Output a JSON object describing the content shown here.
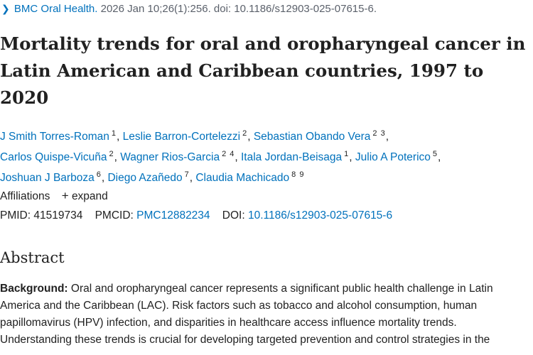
{
  "citation": {
    "journal": "BMC Oral Health.",
    "details": "2026 Jan 10;26(1):256. doi: 10.1186/s12903-025-07615-6."
  },
  "title_lines": [
    "Mortality trends for oral and oropharyngeal cancer in",
    "Latin American and Caribbean countries, 1997 to",
    "2020"
  ],
  "authors": [
    {
      "name": "J Smith Torres-Roman",
      "aff": "1"
    },
    {
      "name": "Leslie Barron-Cortelezzi",
      "aff": "2"
    },
    {
      "name": "Sebastian Obando Vera",
      "aff": "2 3"
    },
    {
      "name": "Carlos Quispe-Vicuña",
      "aff": "2"
    },
    {
      "name": "Wagner Rios-Garcia",
      "aff": "2 4"
    },
    {
      "name": "Itala Jordan-Beisaga",
      "aff": "1"
    },
    {
      "name": "Julio A Poterico",
      "aff": "5"
    },
    {
      "name": "Joshuan J Barboza",
      "aff": "6"
    },
    {
      "name": "Diego Azañedo",
      "aff": "7"
    },
    {
      "name": "Claudia Machicado",
      "aff": "8 9"
    }
  ],
  "affiliations": {
    "label": "Affiliations",
    "expand_label": "expand",
    "expand_icon": "plus-icon"
  },
  "ids": {
    "pmid_label": "PMID:",
    "pmid": "41519734",
    "pmcid_label": "PMCID:",
    "pmcid": "PMC12882234",
    "doi_label": "DOI:",
    "doi": "10.1186/s12903-025-07615-6"
  },
  "abstract": {
    "heading": "Abstract",
    "background_label": "Background:",
    "lines": [
      " Oral and oropharyngeal cancer represents a significant public health challenge in Latin",
      "America and the Caribbean (LAC). Risk factors such as tobacco and alcohol consumption, human",
      "papillomavirus (HPV) infection, and disparities in healthcare access influence mortality trends.",
      "Understanding these trends is crucial for developing targeted prevention and control strategies in the"
    ]
  }
}
